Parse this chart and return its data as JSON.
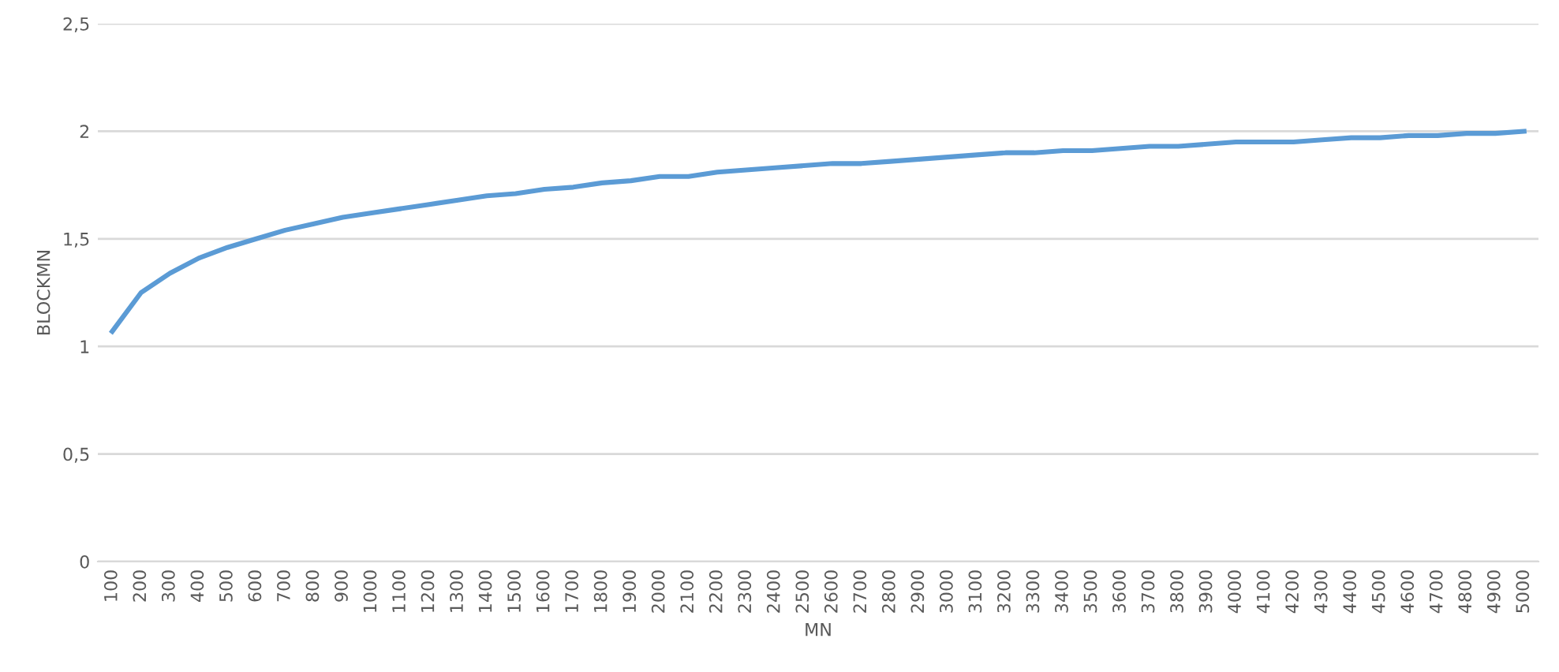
{
  "chart_data": {
    "type": "line",
    "xlabel": "MN",
    "ylabel": "BLOCKMN",
    "categories": [
      "100",
      "200",
      "300",
      "400",
      "500",
      "600",
      "700",
      "800",
      "900",
      "1000",
      "1100",
      "1200",
      "1300",
      "1400",
      "1500",
      "1600",
      "1700",
      "1800",
      "1900",
      "2000",
      "2100",
      "2200",
      "2300",
      "2400",
      "2500",
      "2600",
      "2700",
      "2800",
      "2900",
      "3000",
      "3100",
      "3200",
      "3300",
      "3400",
      "3500",
      "3600",
      "3700",
      "3800",
      "3900",
      "4000",
      "4100",
      "4200",
      "4300",
      "4400",
      "4500",
      "4600",
      "4700",
      "4800",
      "4900",
      "5000"
    ],
    "series": [
      {
        "color": "#5b9bd5",
        "values": [
          1.07,
          1.25,
          1.34,
          1.41,
          1.46,
          1.5,
          1.54,
          1.57,
          1.6,
          1.62,
          1.64,
          1.66,
          1.68,
          1.7,
          1.71,
          1.73,
          1.74,
          1.76,
          1.77,
          1.79,
          1.79,
          1.81,
          1.82,
          1.83,
          1.84,
          1.85,
          1.85,
          1.86,
          1.87,
          1.88,
          1.89,
          1.9,
          1.9,
          1.91,
          1.91,
          1.92,
          1.93,
          1.93,
          1.94,
          1.95,
          1.95,
          1.95,
          1.96,
          1.97,
          1.97,
          1.98,
          1.98,
          1.99,
          1.99,
          2.0
        ]
      }
    ],
    "ylim": [
      0,
      2.5
    ],
    "yticks": [
      0,
      {
        "value": 0.5,
        "label": "0,5"
      },
      1,
      {
        "value": 1.5,
        "label": "1,5"
      },
      2,
      {
        "value": 2.5,
        "label": "2,5"
      }
    ],
    "grid": "y",
    "marker": "none",
    "line_style": "solid",
    "legend": false
  }
}
